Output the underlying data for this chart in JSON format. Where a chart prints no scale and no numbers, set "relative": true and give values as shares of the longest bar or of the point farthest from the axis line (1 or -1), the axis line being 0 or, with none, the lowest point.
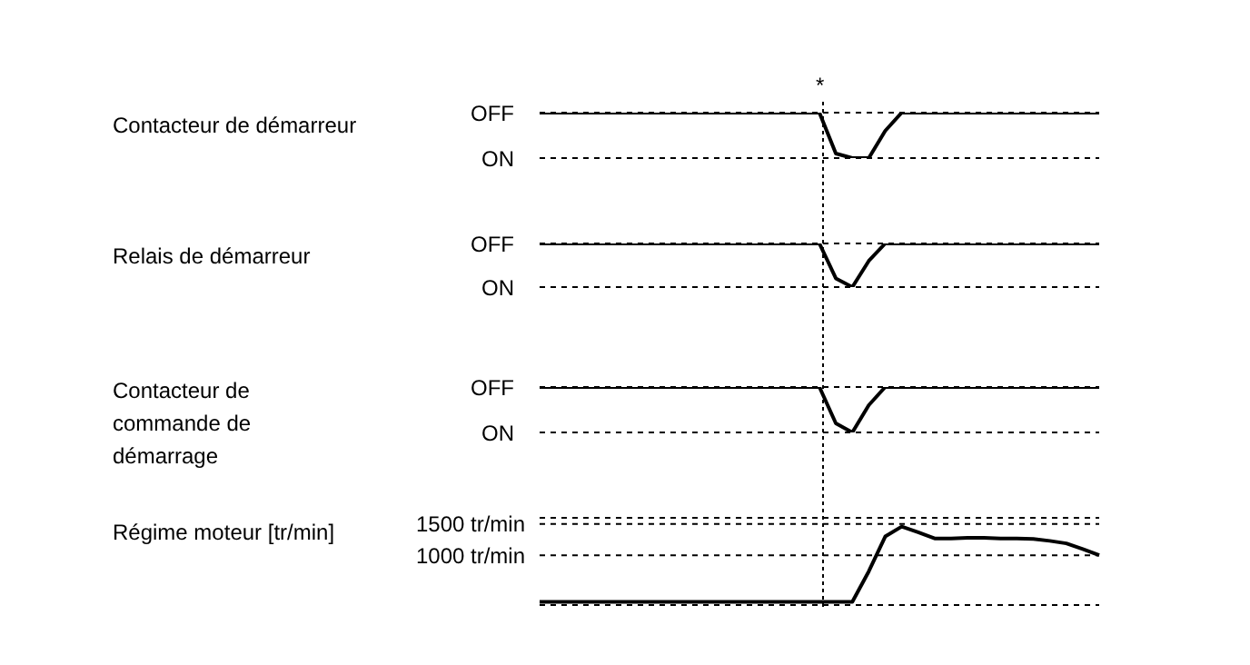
{
  "chart_data": [
    {
      "type": "line",
      "ylabel": "Contacteur de démarreur",
      "relative": true,
      "annotations": [
        "OFF",
        "ON",
        "*"
      ],
      "categories": [
        null,
        null,
        null,
        null,
        null,
        null,
        null,
        null,
        null,
        null,
        null,
        null,
        null,
        null,
        null,
        null,
        null,
        null,
        null,
        null,
        null,
        null,
        null,
        null,
        null,
        null,
        null,
        null,
        null,
        null,
        null,
        null,
        null,
        null,
        null
      ],
      "series": [
        {
          "color": "#000000",
          "values": [
            1,
            1,
            1,
            1,
            1,
            1,
            1,
            1,
            1,
            1,
            1,
            1,
            1,
            1,
            1,
            1,
            1,
            1,
            0.1,
            0,
            0,
            0.6,
            1,
            1,
            1,
            1,
            1,
            1,
            1,
            1,
            1,
            1,
            1,
            1,
            1
          ]
        }
      ],
      "tick_labels": false,
      "marker": "none",
      "line_style": "solid"
    },
    {
      "type": "line",
      "ylabel": "Relais de démarreur",
      "relative": true,
      "annotations": [
        "OFF",
        "ON"
      ],
      "categories": [
        null,
        null,
        null,
        null,
        null,
        null,
        null,
        null,
        null,
        null,
        null,
        null,
        null,
        null,
        null,
        null,
        null,
        null,
        null,
        null,
        null,
        null,
        null,
        null,
        null,
        null,
        null,
        null,
        null,
        null,
        null,
        null,
        null,
        null,
        null
      ],
      "series": [
        {
          "color": "#000000",
          "values": [
            1,
            1,
            1,
            1,
            1,
            1,
            1,
            1,
            1,
            1,
            1,
            1,
            1,
            1,
            1,
            1,
            1,
            1,
            0.2,
            0,
            0.6,
            1,
            1,
            1,
            1,
            1,
            1,
            1,
            1,
            1,
            1,
            1,
            1,
            1,
            1
          ]
        }
      ],
      "tick_labels": false,
      "marker": "none",
      "line_style": "solid"
    },
    {
      "type": "line",
      "ylabel": "Contacteur de commande de démarrage",
      "relative": true,
      "annotations": [
        "OFF",
        "ON"
      ],
      "categories": [
        null,
        null,
        null,
        null,
        null,
        null,
        null,
        null,
        null,
        null,
        null,
        null,
        null,
        null,
        null,
        null,
        null,
        null,
        null,
        null,
        null,
        null,
        null,
        null,
        null,
        null,
        null,
        null,
        null,
        null,
        null,
        null,
        null,
        null,
        null
      ],
      "series": [
        {
          "color": "#000000",
          "values": [
            1,
            1,
            1,
            1,
            1,
            1,
            1,
            1,
            1,
            1,
            1,
            1,
            1,
            1,
            1,
            1,
            1,
            1,
            0.2,
            0,
            0.6,
            1,
            1,
            1,
            1,
            1,
            1,
            1,
            1,
            1,
            1,
            1,
            1,
            1,
            1
          ]
        }
      ],
      "tick_labels": false,
      "marker": "none",
      "line_style": "solid"
    },
    {
      "type": "line",
      "ylabel": "Régime moteur [tr/min]",
      "categories": [
        null,
        null,
        null,
        null,
        null,
        null,
        null,
        null,
        null,
        null,
        null,
        null,
        null,
        null,
        null,
        null,
        null,
        null,
        null,
        null,
        null,
        null,
        null,
        null,
        null,
        null,
        null,
        null,
        null,
        null,
        null,
        null,
        null,
        null,
        null
      ],
      "series": [
        {
          "color": "#000000",
          "values": [
            250,
            250,
            250,
            250,
            250,
            250,
            250,
            250,
            250,
            250,
            250,
            250,
            250,
            250,
            250,
            250,
            250,
            250,
            250,
            250,
            740,
            1300,
            1460,
            1370,
            1270,
            1270,
            1280,
            1280,
            1270,
            1270,
            1260,
            1230,
            1190,
            1100,
            1000
          ]
        }
      ],
      "ylim": [
        200,
        1600
      ],
      "yticks": [
        {
          "value": 1500,
          "label": "1500 tr/min"
        },
        {
          "value": 1000,
          "label": "1000 tr/min"
        }
      ],
      "grid": "y",
      "tick_labels": "y",
      "marker": "none",
      "line_style": "solid"
    }
  ]
}
